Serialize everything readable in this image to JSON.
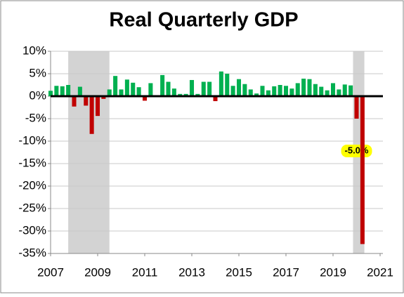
{
  "chart_data": {
    "type": "bar",
    "title": "Real Quarterly GDP",
    "x": [
      2007,
      2007.25,
      2007.5,
      2007.75,
      2008,
      2008.25,
      2008.5,
      2008.75,
      2009,
      2009.25,
      2009.5,
      2009.75,
      2010,
      2010.25,
      2010.5,
      2010.75,
      2011,
      2011.25,
      2011.5,
      2011.75,
      2012,
      2012.25,
      2012.5,
      2012.75,
      2013,
      2013.25,
      2013.5,
      2013.75,
      2014,
      2014.25,
      2014.5,
      2014.75,
      2015,
      2015.25,
      2015.5,
      2015.75,
      2016,
      2016.25,
      2016.5,
      2016.75,
      2017,
      2017.25,
      2017.5,
      2017.75,
      2018,
      2018.25,
      2018.5,
      2018.75,
      2019,
      2019.25,
      2019.5,
      2019.75,
      2020,
      2020.25
    ],
    "values": [
      1.2,
      2.3,
      2.2,
      2.5,
      -2.3,
      2.1,
      -2.1,
      -8.4,
      -4.4,
      -0.6,
      1.5,
      4.5,
      1.5,
      3.7,
      3.0,
      2.0,
      -1.0,
      2.9,
      -0.1,
      4.7,
      3.2,
      1.7,
      0.5,
      0.5,
      3.6,
      0.5,
      3.2,
      3.2,
      -1.1,
      5.5,
      5.0,
      2.3,
      3.8,
      2.7,
      1.5,
      0.6,
      2.3,
      1.3,
      2.2,
      2.5,
      2.3,
      1.7,
      2.9,
      3.9,
      3.8,
      2.7,
      2.1,
      1.3,
      2.9,
      1.5,
      2.6,
      2.4,
      -5.0,
      -32.9
    ],
    "value_labels": [
      null,
      null,
      null,
      null,
      null,
      null,
      null,
      null,
      null,
      null,
      null,
      null,
      null,
      null,
      null,
      null,
      null,
      null,
      null,
      null,
      null,
      null,
      null,
      null,
      null,
      null,
      null,
      null,
      null,
      null,
      null,
      null,
      null,
      null,
      null,
      null,
      null,
      null,
      null,
      null,
      null,
      null,
      null,
      null,
      null,
      null,
      null,
      null,
      null,
      null,
      null,
      null,
      "-5.0%",
      null
    ],
    "positive_color": "#00b050",
    "negative_color": "#c00000",
    "recessions": [
      [
        2007.75,
        2009.5
      ],
      [
        2019.85,
        2020.33
      ]
    ],
    "recession_color": "#d3d3d3",
    "xlim": [
      2007,
      2021
    ],
    "xticks": [
      2007,
      2009,
      2011,
      2013,
      2015,
      2017,
      2019,
      2021
    ],
    "ylim": [
      -35,
      10
    ],
    "yticks": [
      {
        "value": -35,
        "label": "-35%"
      },
      {
        "value": -30,
        "label": "-30%"
      },
      {
        "value": -25,
        "label": "-25%"
      },
      {
        "value": -20,
        "label": "-20%"
      },
      {
        "value": -15,
        "label": "-15%"
      },
      {
        "value": -10,
        "label": "-10%"
      },
      {
        "value": -5,
        "label": "-5%"
      },
      {
        "value": 0,
        "label": "0%"
      },
      {
        "value": 5,
        "label": "5%"
      },
      {
        "value": 10,
        "label": "10%"
      }
    ],
    "grid": true
  }
}
